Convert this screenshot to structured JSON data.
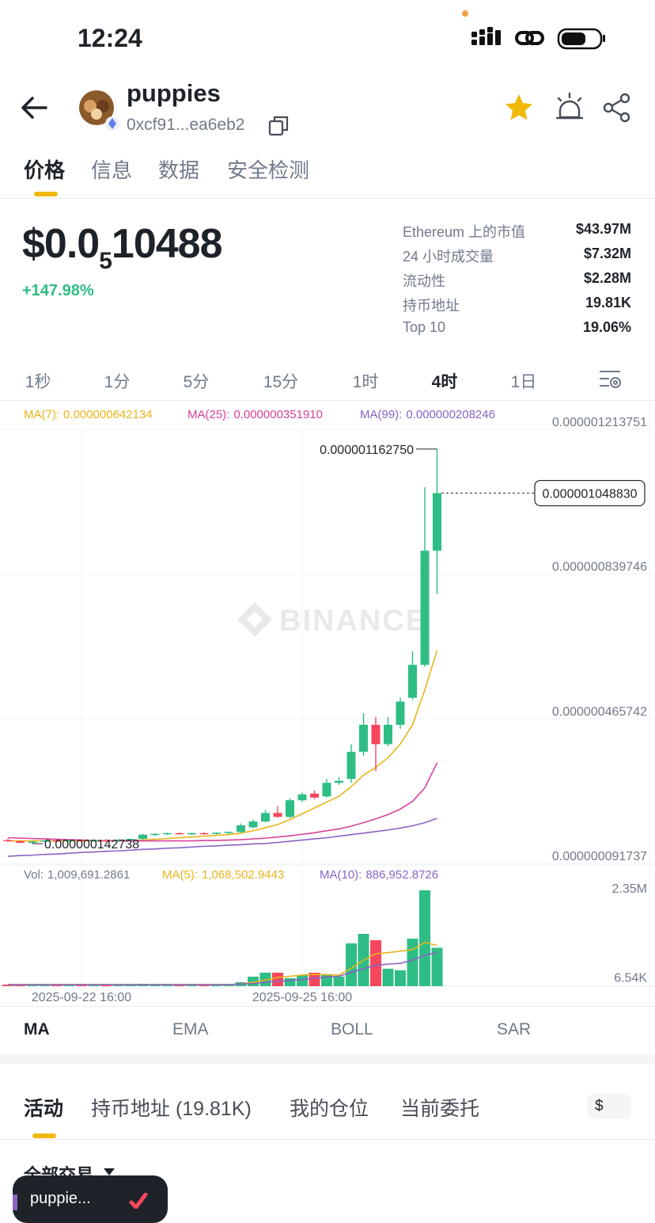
{
  "status_bar": {
    "time": "12:24"
  },
  "header": {
    "name": "puppies",
    "address": "0xcf91...ea6eb2"
  },
  "tabs": [
    "价格",
    "信息",
    "数据",
    "安全检测"
  ],
  "active_tab": 0,
  "price": {
    "prefix": "$0.0",
    "subscript": "5",
    "digits": "10488",
    "change": "+147.98%"
  },
  "stats": [
    [
      "Ethereum 上的市值",
      "$43.97M"
    ],
    [
      "24 小时成交量",
      "$7.32M"
    ],
    [
      "流动性",
      "$2.28M"
    ],
    [
      "持币地址",
      "19.81K"
    ],
    [
      "Top 10",
      "19.06%"
    ]
  ],
  "intervals": [
    "1秒",
    "1分",
    "5分",
    "15分",
    "1时",
    "4时",
    "1日"
  ],
  "active_interval": 5,
  "chart_data": {
    "type": "candlestick",
    "watermark": "BINANCE",
    "categories": [
      null,
      null,
      null,
      null,
      null,
      null,
      "2025-09-22 16:00",
      null,
      null,
      null,
      null,
      null,
      null,
      null,
      null,
      null,
      null,
      null,
      null,
      null,
      null,
      null,
      null,
      null,
      "2025-09-25 16:00",
      null,
      null,
      null,
      null,
      null,
      null,
      null,
      null,
      null,
      null,
      null
    ],
    "open": [
      1.52e-07,
      1.49e-07,
      1.45e-07,
      1.48e-07,
      1.51e-07,
      1.49e-07,
      1.52e-07,
      1.5e-07,
      1.52e-07,
      1.5e-07,
      1.53e-07,
      1.55e-07,
      1.66e-07,
      1.68e-07,
      1.7e-07,
      1.67e-07,
      1.7e-07,
      1.68e-07,
      1.71e-07,
      1.73e-07,
      1.85e-07,
      2e-07,
      2.22e-07,
      2.12e-07,
      2.55e-07,
      2.72e-07,
      2.65e-07,
      3e-07,
      3.1e-07,
      3.8e-07,
      4.5e-07,
      4e-07,
      4.5e-07,
      5.2e-07,
      6.05e-07,
      9e-07
    ],
    "high": [
      1.55e-07,
      1.51e-07,
      1.5e-07,
      1.52e-07,
      1.53e-07,
      1.53e-07,
      1.54e-07,
      1.53e-07,
      1.55e-07,
      1.54e-07,
      1.56e-07,
      1.68e-07,
      1.7e-07,
      1.71e-07,
      1.72e-07,
      1.71e-07,
      1.72e-07,
      1.72e-07,
      1.74e-07,
      1.95e-07,
      2.05e-07,
      2.3e-07,
      2.4e-07,
      2.6e-07,
      2.75e-07,
      2.8e-07,
      3.1e-07,
      3.15e-07,
      4e-07,
      4.8e-07,
      4.7e-07,
      4.7e-07,
      5.2e-07,
      6.4e-07,
      1.064e-06,
      1.16275e-06
    ],
    "low": [
      1.47e-07,
      1.44e-07,
      1.42738e-07,
      1.46e-07,
      1.47e-07,
      1.47e-07,
      1.48e-07,
      1.48e-07,
      1.49e-07,
      1.48e-07,
      1.5e-07,
      1.53e-07,
      1.63e-07,
      1.65e-07,
      1.66e-07,
      1.65e-07,
      1.66e-07,
      1.66e-07,
      1.68e-07,
      1.7e-07,
      1.82e-07,
      1.98e-07,
      2.1e-07,
      2.08e-07,
      2.5e-07,
      2.58e-07,
      2.62e-07,
      2.95e-07,
      3e-07,
      3.7e-07,
      3.3e-07,
      3.95e-07,
      4.4e-07,
      5.15e-07,
      6e-07,
      7.88e-07
    ],
    "close": [
      1.49e-07,
      1.45e-07,
      1.48e-07,
      1.51e-07,
      1.49e-07,
      1.52e-07,
      1.5e-07,
      1.52e-07,
      1.5e-07,
      1.53e-07,
      1.55e-07,
      1.66e-07,
      1.68e-07,
      1.7e-07,
      1.67e-07,
      1.7e-07,
      1.68e-07,
      1.71e-07,
      1.73e-07,
      1.9e-07,
      2e-07,
      2.22e-07,
      2.12e-07,
      2.55e-07,
      2.7e-07,
      2.62e-07,
      3e-07,
      3.05e-07,
      3.8e-07,
      4.5e-07,
      4e-07,
      4.5e-07,
      5.1e-07,
      6.05e-07,
      9e-07,
      1.04883e-06
    ],
    "up_color": "#2ebd85",
    "down_color": "#f6465d",
    "ylim": [
      9.1737e-08,
      1.213751e-06
    ],
    "yticks": [
      {
        "value": 1.213751e-06,
        "label": "0.000001213751"
      },
      {
        "value": 8.39746e-07,
        "label": "0.000000839746"
      },
      {
        "value": 4.65742e-07,
        "label": "0.000000465742"
      },
      {
        "value": 9.1737e-08,
        "label": "0.000000091737"
      }
    ],
    "grid": true,
    "current_price_label": "0.000001048830",
    "high_label": "0.000001162750",
    "low_label": "0.000000142738",
    "series": [
      {
        "name": "MA(7):",
        "legend_value": "0.000000642134",
        "color": "#e9b41a",
        "values": [
          1.5e-07,
          1.5e-07,
          1.5e-07,
          1.5e-07,
          1.5e-07,
          1.5e-07,
          1.5e-07,
          1.5e-07,
          1.5e-07,
          1.5e-07,
          1.51e-07,
          1.52e-07,
          1.54e-07,
          1.56e-07,
          1.58e-07,
          1.6e-07,
          1.62e-07,
          1.64e-07,
          1.66e-07,
          1.7e-07,
          1.76e-07,
          1.84e-07,
          1.92e-07,
          2.05e-07,
          2.2e-07,
          2.35e-07,
          2.5e-07,
          2.65e-07,
          2.9e-07,
          3.2e-07,
          3.4e-07,
          3.65e-07,
          4e-07,
          4.5e-07,
          5.4e-07,
          6.42134e-07
        ]
      },
      {
        "name": "MA(25):",
        "legend_value": "0.000000351910",
        "color": "#d9409a",
        "values": [
          1.58e-07,
          1.57e-07,
          1.56e-07,
          1.55e-07,
          1.54e-07,
          1.53e-07,
          1.52e-07,
          1.51e-07,
          1.5e-07,
          1.5e-07,
          1.5e-07,
          1.5e-07,
          1.5e-07,
          1.5e-07,
          1.5e-07,
          1.5e-07,
          1.51e-07,
          1.51e-07,
          1.52e-07,
          1.53e-07,
          1.55e-07,
          1.57e-07,
          1.6e-07,
          1.63e-07,
          1.67e-07,
          1.71e-07,
          1.76e-07,
          1.81e-07,
          1.88e-07,
          1.97e-07,
          2.07e-07,
          2.18e-07,
          2.32e-07,
          2.52e-07,
          2.87e-07,
          3.5191e-07
        ]
      },
      {
        "name": "MA(99):",
        "legend_value": "0.000000208246",
        "color": "#8a63c4",
        "values": [
          1.1e-07,
          1.12e-07,
          1.13e-07,
          1.15e-07,
          1.16e-07,
          1.18e-07,
          1.2e-07,
          1.21e-07,
          1.23e-07,
          1.24e-07,
          1.26e-07,
          1.28e-07,
          1.29e-07,
          1.31e-07,
          1.32e-07,
          1.34e-07,
          1.36e-07,
          1.37e-07,
          1.39e-07,
          1.4e-07,
          1.42e-07,
          1.43e-07,
          1.46e-07,
          1.49e-07,
          1.52e-07,
          1.55e-07,
          1.58e-07,
          1.62e-07,
          1.66e-07,
          1.7e-07,
          1.74e-07,
          1.78e-07,
          1.83e-07,
          1.89e-07,
          1.97e-07,
          2.08246e-07
        ]
      }
    ],
    "volume": {
      "name": "Vol:",
      "legend_value": "1,009,691.2861",
      "values": [
        40000,
        30000,
        50000,
        20000,
        30000,
        20000,
        40000,
        20000,
        30000,
        20000,
        30000,
        60000,
        50000,
        40000,
        50000,
        40000,
        30000,
        40000,
        50000,
        104000,
        250000,
        354000,
        354000,
        208000,
        291000,
        354000,
        312000,
        250000,
        1123000,
        1373000,
        1206000,
        458000,
        416000,
        1248000,
        2517000,
        1009691.2861
      ],
      "ylim": [
        0,
        2600000
      ],
      "yticks": [
        {
          "value": 2350000,
          "label": "2.35M"
        },
        {
          "value": 6540,
          "label": "6.54K"
        }
      ],
      "series": [
        {
          "name": "MA(5):",
          "legend_value": "1,068,502.9443",
          "color": "#e9b41a",
          "values": [
            40000,
            40000,
            40000,
            40000,
            40000,
            40000,
            40000,
            40000,
            40000,
            40000,
            40000,
            40000,
            40000,
            40000,
            40000,
            40000,
            40000,
            40000,
            40000,
            60000,
            100000,
            160000,
            230000,
            260000,
            290000,
            310000,
            300000,
            290000,
            470000,
            680000,
            850000,
            880000,
            920000,
            960000,
            1150000,
            1068502.9443
          ]
        },
        {
          "name": "MA(10):",
          "legend_value": "886,952.8726",
          "color": "#8a63c4",
          "values": [
            40000,
            40000,
            40000,
            40000,
            40000,
            40000,
            40000,
            40000,
            40000,
            40000,
            40000,
            40000,
            40000,
            40000,
            40000,
            40000,
            40000,
            40000,
            40000,
            55000,
            70000,
            100000,
            130000,
            150000,
            175000,
            210000,
            240000,
            260000,
            360000,
            460000,
            550000,
            580000,
            600000,
            680000,
            810000,
            886952.8726
          ]
        }
      ]
    }
  },
  "indicator_tabs": [
    "MA",
    "EMA",
    "BOLL",
    "SAR"
  ],
  "bottom_tabs": [
    "活动",
    "持币地址 (19.81K)",
    "我的仓位",
    "当前委托"
  ],
  "currency": "$",
  "filter": "全部交易",
  "toast": "puppie..."
}
